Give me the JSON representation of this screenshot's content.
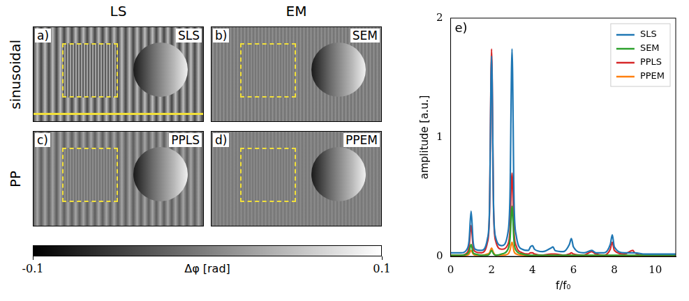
{
  "column_titles": [
    "LS",
    "EM"
  ],
  "row_titles": [
    "sinusoidal",
    "PP"
  ],
  "panels": [
    {
      "letter": "a)",
      "tag": "SLS"
    },
    {
      "letter": "b)",
      "tag": "SEM"
    },
    {
      "letter": "c)",
      "tag": "PPLS"
    },
    {
      "letter": "d)",
      "tag": "PPEM"
    }
  ],
  "colorbar": {
    "label": "Δφ [rad]",
    "range": [
      -0.1,
      0.1
    ],
    "ticks": [
      -0.1,
      0.1
    ]
  },
  "chart_data": {
    "type": "line",
    "annotations": [
      "e)"
    ],
    "xlabel": "f/f₀",
    "ylabel": "amplitude [a.u.]",
    "x": [
      0,
      0.5,
      0.8,
      0.9,
      1,
      1.1,
      1.2,
      1.5,
      1.8,
      1.9,
      2,
      2.1,
      2.2,
      2.5,
      2.8,
      2.9,
      3,
      3.1,
      3.2,
      3.5,
      3.8,
      3.9,
      4,
      4.1,
      4.5,
      4.9,
      5,
      5.1,
      5.5,
      5.8,
      5.9,
      6,
      6.5,
      6.9,
      7,
      7.1,
      7.5,
      7.8,
      7.9,
      8,
      8.5,
      8.9,
      9,
      9.5,
      10,
      10.5,
      11
    ],
    "series": [
      {
        "name": "SLS",
        "color": "#1f77b4",
        "values": [
          0.03,
          0.03,
          0.06,
          0.13,
          0.38,
          0.12,
          0.06,
          0.05,
          0.15,
          0.4,
          1.68,
          0.4,
          0.16,
          0.09,
          0.2,
          0.5,
          1.74,
          0.45,
          0.18,
          0.06,
          0.05,
          0.08,
          0.09,
          0.06,
          0.04,
          0.07,
          0.08,
          0.05,
          0.04,
          0.1,
          0.15,
          0.08,
          0.03,
          0.05,
          0.04,
          0.03,
          0.03,
          0.1,
          0.18,
          0.08,
          0.03,
          0.03,
          0.03,
          0.02,
          0.02,
          0.02,
          0.02
        ]
      },
      {
        "name": "SEM",
        "color": "#2ca02c",
        "values": [
          0.01,
          0.01,
          0.02,
          0.04,
          0.1,
          0.03,
          0.02,
          0.01,
          0.01,
          0.02,
          0.05,
          0.02,
          0.01,
          0.02,
          0.06,
          0.14,
          0.42,
          0.12,
          0.05,
          0.02,
          0.01,
          0.01,
          0.01,
          0.01,
          0.01,
          0.01,
          0.01,
          0.01,
          0.01,
          0.01,
          0.01,
          0.01,
          0.01,
          0.01,
          0.01,
          0.01,
          0.01,
          0.01,
          0.01,
          0.01,
          0.01,
          0.01,
          0.01,
          0.01,
          0.01,
          0.01,
          0.01
        ]
      },
      {
        "name": "PPLS",
        "color": "#d62728",
        "values": [
          0.01,
          0.01,
          0.03,
          0.08,
          0.26,
          0.08,
          0.04,
          0.03,
          0.12,
          0.38,
          1.74,
          0.38,
          0.13,
          0.06,
          0.1,
          0.22,
          0.7,
          0.2,
          0.09,
          0.03,
          0.02,
          0.03,
          0.03,
          0.02,
          0.01,
          0.02,
          0.02,
          0.02,
          0.01,
          0.02,
          0.03,
          0.02,
          0.01,
          0.04,
          0.03,
          0.02,
          0.01,
          0.06,
          0.12,
          0.05,
          0.02,
          0.05,
          0.03,
          0.01,
          0.01,
          0.01,
          0.01
        ]
      },
      {
        "name": "PPEM",
        "color": "#ff7f0e",
        "values": [
          0.005,
          0.005,
          0.01,
          0.02,
          0.05,
          0.02,
          0.01,
          0.01,
          0.02,
          0.03,
          0.07,
          0.03,
          0.01,
          0.01,
          0.02,
          0.05,
          0.12,
          0.04,
          0.02,
          0.01,
          0.005,
          0.005,
          0.005,
          0.005,
          0.005,
          0.005,
          0.005,
          0.005,
          0.005,
          0.005,
          0.005,
          0.005,
          0.005,
          0.005,
          0.005,
          0.005,
          0.005,
          0.005,
          0.005,
          0.005,
          0.005,
          0.005,
          0.005,
          0.005,
          0.005,
          0.005,
          0.005
        ]
      }
    ],
    "xlim": [
      0,
      11
    ],
    "xticks": [
      0,
      2,
      4,
      6,
      8,
      10
    ],
    "ylim": [
      0,
      2
    ],
    "yticks": [
      0,
      1,
      2
    ],
    "grid": false,
    "legend": "upper right"
  }
}
